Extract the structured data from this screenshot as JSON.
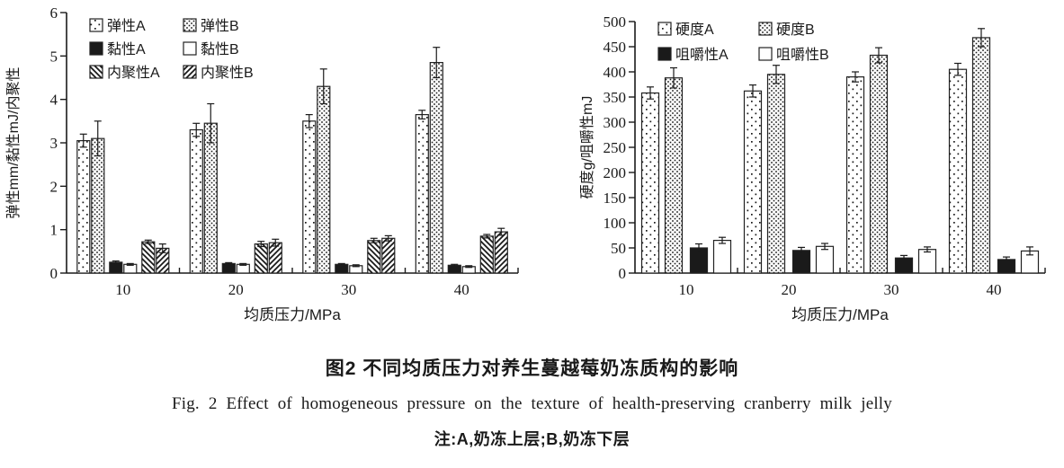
{
  "figure": {
    "caption_cn": "图2  不同均质压力对养生蔓越莓奶冻质构的影响",
    "caption_en": "Fig. 2  Effect of homogeneous pressure on the texture of health-preserving cranberry milk jelly",
    "note": "注:A,奶冻上层;B,奶冻下层"
  },
  "chart_data": [
    {
      "type": "bar",
      "title": "",
      "xlabel": "均质压力/MPa",
      "ylabel": "弹性mm/黏性mJ/内聚性",
      "categories": [
        "10",
        "20",
        "30",
        "40"
      ],
      "ylim": [
        0,
        6
      ],
      "ytick_step": 1,
      "grid": false,
      "legend_position": "top-left-inside",
      "legend_columns": 2,
      "series": [
        {
          "name": "弹性A",
          "pattern": "dots-sparse",
          "values": [
            3.05,
            3.3,
            3.5,
            3.65
          ],
          "errors": [
            0.15,
            0.15,
            0.15,
            0.1
          ]
        },
        {
          "name": "弹性B",
          "pattern": "dots-dense",
          "values": [
            3.1,
            3.45,
            4.3,
            4.85
          ],
          "errors": [
            0.4,
            0.45,
            0.4,
            0.35
          ]
        },
        {
          "name": "黏性A",
          "pattern": "solid-black",
          "values": [
            0.25,
            0.22,
            0.2,
            0.18
          ],
          "errors": [
            0.03,
            0.02,
            0.02,
            0.02
          ]
        },
        {
          "name": "黏性B",
          "pattern": "white",
          "values": [
            0.2,
            0.2,
            0.17,
            0.15
          ],
          "errors": [
            0.02,
            0.02,
            0.02,
            0.02
          ]
        },
        {
          "name": "内聚性A",
          "pattern": "hatch-back",
          "values": [
            0.72,
            0.67,
            0.75,
            0.85
          ],
          "errors": [
            0.04,
            0.06,
            0.05,
            0.04
          ]
        },
        {
          "name": "内聚性B",
          "pattern": "hatch-fwd",
          "values": [
            0.57,
            0.7,
            0.8,
            0.95
          ],
          "errors": [
            0.1,
            0.08,
            0.06,
            0.08
          ]
        }
      ]
    },
    {
      "type": "bar",
      "title": "",
      "xlabel": "均质压力/MPa",
      "ylabel": "硬度g/咀嚼性mJ",
      "categories": [
        "10",
        "20",
        "30",
        "40"
      ],
      "ylim": [
        0,
        500
      ],
      "ytick_step": 50,
      "grid": false,
      "legend_position": "top-left-inside",
      "legend_columns": 2,
      "series": [
        {
          "name": "硬度A",
          "pattern": "dots-sparse",
          "values": [
            358,
            362,
            390,
            405
          ],
          "errors": [
            12,
            12,
            10,
            12
          ]
        },
        {
          "name": "硬度B",
          "pattern": "dots-dense",
          "values": [
            388,
            395,
            433,
            468
          ],
          "errors": [
            20,
            18,
            15,
            18
          ]
        },
        {
          "name": "咀嚼性A",
          "pattern": "solid-black",
          "values": [
            50,
            45,
            30,
            27
          ],
          "errors": [
            8,
            6,
            5,
            5
          ]
        },
        {
          "name": "咀嚼性B",
          "pattern": "white",
          "values": [
            65,
            53,
            47,
            44
          ],
          "errors": [
            6,
            6,
            5,
            8
          ]
        }
      ]
    }
  ],
  "colors": {
    "ink": "#1a1a1a",
    "bar_stroke": "#222222",
    "background": "#ffffff"
  }
}
